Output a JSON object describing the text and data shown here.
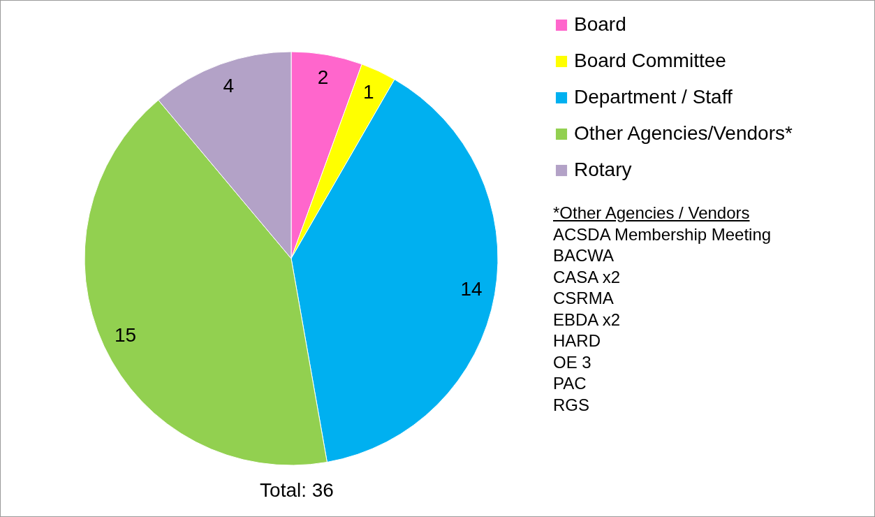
{
  "chart_data": {
    "type": "pie",
    "categories": [
      "Board",
      "Board Committee",
      "Department / Staff",
      "Other Agencies/Vendors*",
      "Rotary"
    ],
    "values": [
      2,
      1,
      14,
      15,
      4
    ],
    "colors": [
      "#ff66cc",
      "#ffff00",
      "#00b0f0",
      "#92d050",
      "#b3a2c7"
    ],
    "data_labels": true,
    "legend": "right",
    "annotations": [
      "Total: 36",
      "*Other Agencies / Vendors",
      "ACSDA Membership Meeting",
      "BACWA",
      "CASA x2",
      "CSRMA",
      "EBDA x2",
      "HARD",
      "OE 3",
      "PAC",
      "RGS"
    ]
  }
}
